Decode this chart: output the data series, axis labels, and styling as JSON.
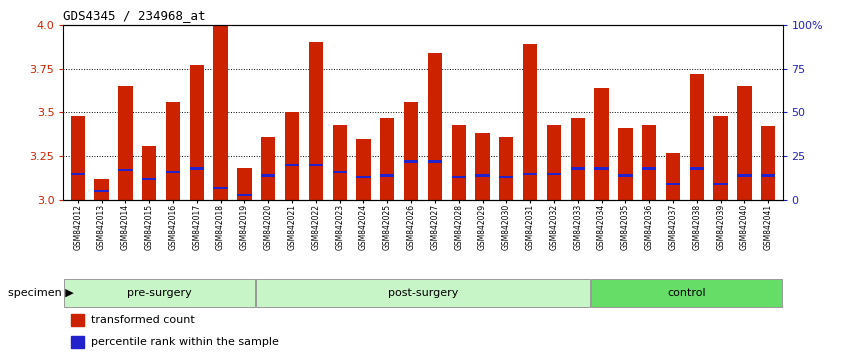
{
  "title": "GDS4345 / 234968_at",
  "samples": [
    "GSM842012",
    "GSM842013",
    "GSM842014",
    "GSM842015",
    "GSM842016",
    "GSM842017",
    "GSM842018",
    "GSM842019",
    "GSM842020",
    "GSM842021",
    "GSM842022",
    "GSM842023",
    "GSM842024",
    "GSM842025",
    "GSM842026",
    "GSM842027",
    "GSM842028",
    "GSM842029",
    "GSM842030",
    "GSM842031",
    "GSM842032",
    "GSM842033",
    "GSM842034",
    "GSM842035",
    "GSM842036",
    "GSM842037",
    "GSM842038",
    "GSM842039",
    "GSM842040",
    "GSM842041"
  ],
  "red_values": [
    3.48,
    3.12,
    3.65,
    3.31,
    3.56,
    3.77,
    4.0,
    3.18,
    3.36,
    3.5,
    3.9,
    3.43,
    3.35,
    3.47,
    3.56,
    3.84,
    3.43,
    3.38,
    3.36,
    3.89,
    3.43,
    3.47,
    3.64,
    3.41,
    3.43,
    3.27,
    3.72,
    3.48,
    3.65,
    3.42
  ],
  "blue_pct": [
    15,
    5,
    17,
    12,
    16,
    18,
    7,
    3,
    14,
    20,
    20,
    16,
    13,
    14,
    22,
    22,
    13,
    14,
    13,
    15,
    15,
    18,
    18,
    14,
    18,
    9,
    18,
    9,
    14,
    14
  ],
  "group_data": [
    {
      "label": "pre-surgery",
      "start": 0,
      "end": 8,
      "color": "#c8f5c8"
    },
    {
      "label": "post-surgery",
      "start": 8,
      "end": 22,
      "color": "#c8f5c8"
    },
    {
      "label": "control",
      "start": 22,
      "end": 30,
      "color": "#66dd66"
    }
  ],
  "ymin": 3.0,
  "ymax": 4.0,
  "yticks_left": [
    3.0,
    3.25,
    3.5,
    3.75,
    4.0
  ],
  "yticks_right_vals": [
    0,
    25,
    50,
    75,
    100
  ],
  "yticks_right_labels": [
    "0",
    "25",
    "50",
    "75",
    "100%"
  ],
  "bar_color": "#cc2200",
  "blue_color": "#2222cc",
  "xlabel": "specimen",
  "legend_red": "transformed count",
  "legend_blue": "percentile rank within the sample",
  "grid_lines": [
    3.25,
    3.5,
    3.75
  ],
  "tick_label_color_left": "#cc2200",
  "tick_label_color_right": "#2222bb"
}
